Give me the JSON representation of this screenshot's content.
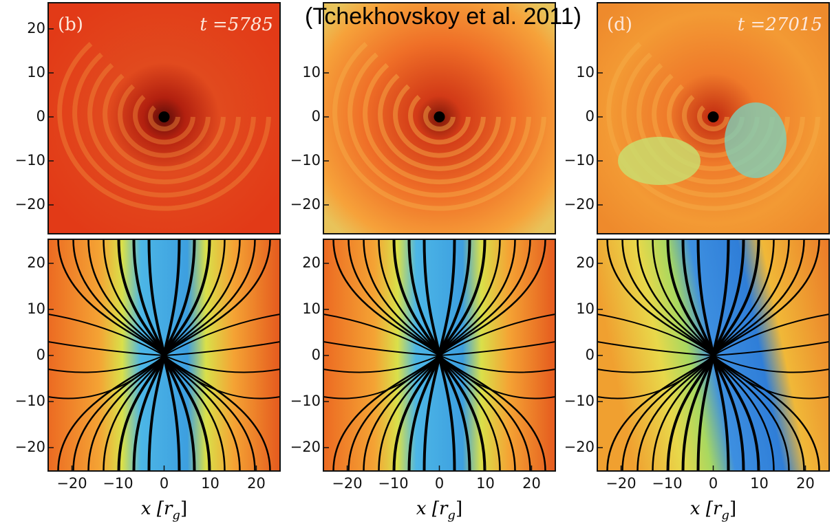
{
  "caption": "(Tchekhovskoy et al. 2011)",
  "top_row": [
    {
      "label": "(b)",
      "time": "t =5785"
    },
    {
      "label": "(d)",
      "time": "t =27015"
    }
  ],
  "y_ticks": [
    "20",
    "10",
    "0",
    "−10",
    "−20"
  ],
  "x_ticks": [
    "−20",
    "−10",
    "0",
    "10",
    "20"
  ],
  "x_label": {
    "text": "x [r",
    "sub": "g",
    "close": "]"
  }
}
